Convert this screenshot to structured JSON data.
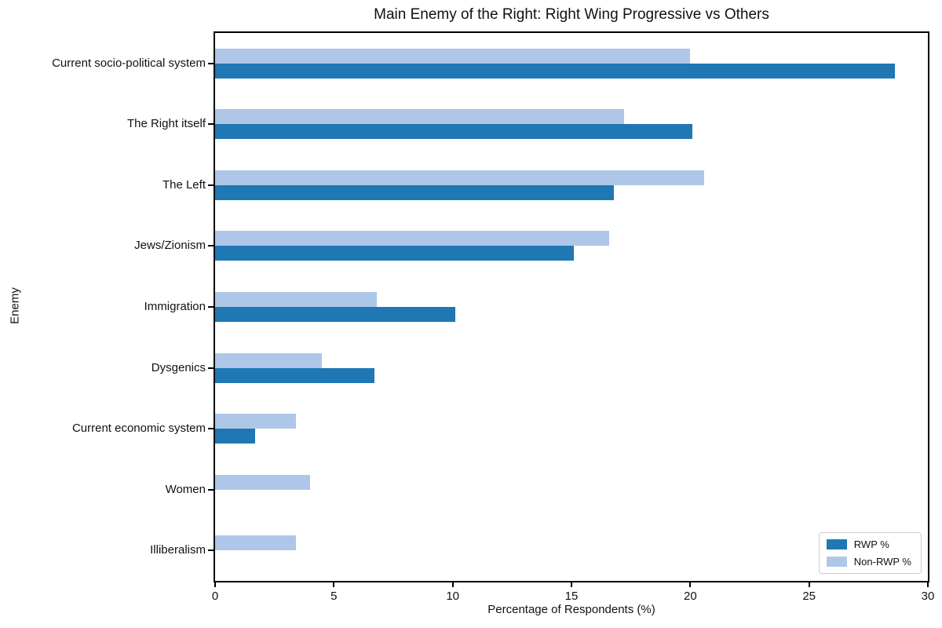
{
  "chart_data": {
    "type": "bar",
    "orientation": "horizontal",
    "title": "Main Enemy of the Right: Right Wing Progressive vs Others",
    "xlabel": "Percentage of Respondents (%)",
    "ylabel": "Enemy",
    "xlim": [
      0,
      30
    ],
    "xticks": [
      0,
      5,
      10,
      15,
      20,
      25,
      30
    ],
    "xtick_labels": [
      "0",
      "5",
      "10",
      "15",
      "20",
      "25",
      "30"
    ],
    "grid": false,
    "legend_position": "lower right",
    "categories": [
      "Current socio-political system",
      "The Right itself",
      "The Left",
      "Jews/Zionism",
      "Immigration",
      "Dysgenics",
      "Current economic system",
      "Women",
      "Illiberalism"
    ],
    "series": [
      {
        "name": "RWP %",
        "color": "#1f77b4",
        "values": [
          28.6,
          20.1,
          16.8,
          15.1,
          10.1,
          6.7,
          1.7,
          0,
          0
        ]
      },
      {
        "name": "Non-RWP %",
        "color": "#aec7e8",
        "values": [
          20.0,
          17.2,
          20.6,
          16.6,
          6.8,
          4.5,
          3.4,
          4.0,
          3.4
        ]
      }
    ]
  }
}
